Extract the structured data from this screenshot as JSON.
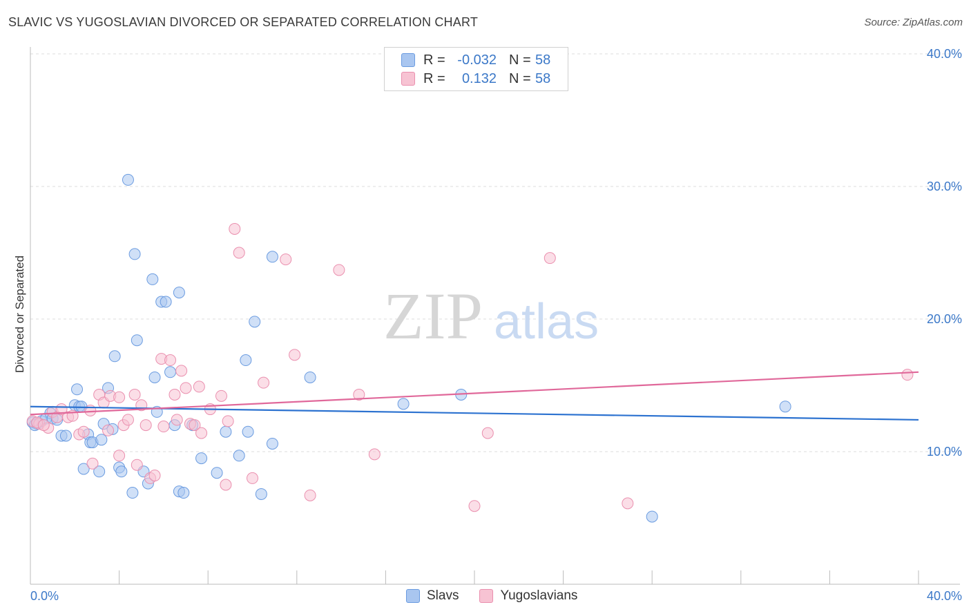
{
  "title": "SLAVIC VS YUGOSLAVIAN DIVORCED OR SEPARATED CORRELATION CHART",
  "source": "Source: ZipAtlas.com",
  "watermark": {
    "zip": "ZIP",
    "atlas": "atlas"
  },
  "legend": {
    "rows": [
      {
        "r_label": "R =",
        "r_value": "-0.032",
        "n_label": "N =",
        "n_value": "58",
        "color": "#a9c6f0",
        "border": "#6a9be0"
      },
      {
        "r_label": "R =",
        "r_value": "0.132",
        "n_label": "N =",
        "n_value": "58",
        "color": "#f7c3d3",
        "border": "#ea8fae"
      }
    ]
  },
  "bottom_legend": {
    "items": [
      {
        "label": "Slavs",
        "color": "#a9c6f0",
        "border": "#6a9be0"
      },
      {
        "label": "Yugoslavians",
        "color": "#f7c3d3",
        "border": "#ea8fae"
      }
    ]
  },
  "chart_data": {
    "type": "scatter",
    "ylabel": "Divorced or Separated",
    "xlim": [
      0,
      40
    ],
    "ylim": [
      0,
      40
    ],
    "x_tick_labels": [
      "0.0%",
      "40.0%"
    ],
    "y_ticks": [
      10,
      20,
      30,
      40
    ],
    "y_tick_labels": [
      "10.0%",
      "20.0%",
      "30.0%",
      "40.0%"
    ],
    "grid": true,
    "series": [
      {
        "name": "Slavs",
        "color": "#6a9be0",
        "fill": "#a9c6f0",
        "trend": {
          "x": [
            0,
            40
          ],
          "y": [
            13.4,
            12.4
          ],
          "color": "#2c72d0"
        },
        "points": [
          [
            0.1,
            12.2
          ],
          [
            0.3,
            12.1
          ],
          [
            0.5,
            12.3
          ],
          [
            0.7,
            12.5
          ],
          [
            0.9,
            12.9
          ],
          [
            1.0,
            12.5
          ],
          [
            1.4,
            11.2
          ],
          [
            1.6,
            11.2
          ],
          [
            2.0,
            13.5
          ],
          [
            2.2,
            13.4
          ],
          [
            2.1,
            14.7
          ],
          [
            2.3,
            13.4
          ],
          [
            2.4,
            8.7
          ],
          [
            2.6,
            11.3
          ],
          [
            2.7,
            10.7
          ],
          [
            2.8,
            10.7
          ],
          [
            3.1,
            8.5
          ],
          [
            3.2,
            10.9
          ],
          [
            3.3,
            12.1
          ],
          [
            3.5,
            14.8
          ],
          [
            3.7,
            11.7
          ],
          [
            3.8,
            17.2
          ],
          [
            4.0,
            8.8
          ],
          [
            4.1,
            8.5
          ],
          [
            4.4,
            30.5
          ],
          [
            4.6,
            6.9
          ],
          [
            4.7,
            24.9
          ],
          [
            4.8,
            18.4
          ],
          [
            5.1,
            8.5
          ],
          [
            5.3,
            7.6
          ],
          [
            5.5,
            23.0
          ],
          [
            5.6,
            15.6
          ],
          [
            5.7,
            13.0
          ],
          [
            5.9,
            21.3
          ],
          [
            6.1,
            21.3
          ],
          [
            6.3,
            16.0
          ],
          [
            6.5,
            12.0
          ],
          [
            6.7,
            22.0
          ],
          [
            6.7,
            7.0
          ],
          [
            6.9,
            6.9
          ],
          [
            7.3,
            12.0
          ],
          [
            7.7,
            9.5
          ],
          [
            8.4,
            8.4
          ],
          [
            8.8,
            11.5
          ],
          [
            9.4,
            9.7
          ],
          [
            9.7,
            16.9
          ],
          [
            9.8,
            11.5
          ],
          [
            10.1,
            19.8
          ],
          [
            10.4,
            6.8
          ],
          [
            10.9,
            10.6
          ],
          [
            10.9,
            24.7
          ],
          [
            12.6,
            15.6
          ],
          [
            16.8,
            13.6
          ],
          [
            19.4,
            14.3
          ],
          [
            28.0,
            5.1
          ],
          [
            34.0,
            13.4
          ],
          [
            0.2,
            12.0
          ],
          [
            1.2,
            12.4
          ]
        ]
      },
      {
        "name": "Yugoslavians",
        "color": "#ea8fae",
        "fill": "#f7c3d3",
        "trend": {
          "x": [
            0,
            40
          ],
          "y": [
            12.8,
            16.0
          ],
          "color": "#e0689a"
        },
        "points": [
          [
            0.1,
            12.3
          ],
          [
            0.4,
            12.1
          ],
          [
            0.8,
            11.8
          ],
          [
            1.0,
            13.0
          ],
          [
            1.2,
            12.6
          ],
          [
            1.4,
            13.2
          ],
          [
            1.7,
            12.6
          ],
          [
            1.9,
            12.7
          ],
          [
            2.2,
            11.3
          ],
          [
            2.4,
            11.5
          ],
          [
            2.7,
            13.1
          ],
          [
            2.8,
            9.1
          ],
          [
            3.1,
            14.3
          ],
          [
            3.3,
            13.7
          ],
          [
            3.5,
            11.6
          ],
          [
            3.6,
            14.2
          ],
          [
            4.0,
            14.1
          ],
          [
            4.0,
            9.7
          ],
          [
            4.2,
            12.0
          ],
          [
            4.4,
            12.4
          ],
          [
            4.7,
            14.3
          ],
          [
            4.8,
            9.0
          ],
          [
            5.0,
            13.5
          ],
          [
            5.2,
            12.0
          ],
          [
            5.4,
            8.0
          ],
          [
            5.6,
            8.2
          ],
          [
            5.9,
            17.0
          ],
          [
            6.0,
            11.9
          ],
          [
            6.3,
            16.9
          ],
          [
            6.5,
            14.3
          ],
          [
            6.6,
            12.4
          ],
          [
            6.8,
            16.1
          ],
          [
            7.0,
            14.8
          ],
          [
            7.2,
            12.1
          ],
          [
            7.4,
            12.0
          ],
          [
            7.6,
            14.9
          ],
          [
            7.7,
            11.4
          ],
          [
            8.1,
            13.2
          ],
          [
            8.6,
            14.2
          ],
          [
            8.8,
            7.5
          ],
          [
            8.9,
            12.3
          ],
          [
            9.2,
            26.8
          ],
          [
            9.4,
            25.0
          ],
          [
            10.0,
            8.0
          ],
          [
            10.5,
            15.2
          ],
          [
            11.5,
            24.5
          ],
          [
            11.9,
            17.3
          ],
          [
            12.6,
            6.7
          ],
          [
            13.9,
            23.7
          ],
          [
            14.8,
            14.3
          ],
          [
            15.5,
            9.8
          ],
          [
            20.0,
            5.9
          ],
          [
            20.6,
            11.4
          ],
          [
            23.4,
            24.6
          ],
          [
            26.9,
            6.1
          ],
          [
            39.5,
            15.8
          ],
          [
            0.3,
            12.2
          ],
          [
            0.6,
            12.0
          ]
        ]
      }
    ]
  }
}
